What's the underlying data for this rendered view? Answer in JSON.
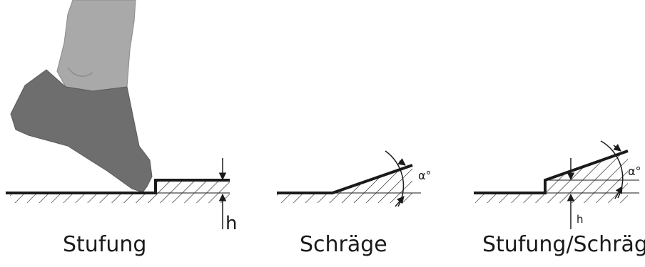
{
  "panels": [
    {
      "caption": "Stufung",
      "dimension_label": "h"
    },
    {
      "caption": "Schräge",
      "angle_label": "α°"
    },
    {
      "caption": "Stufung/Schräge",
      "angle_label": "α°",
      "dimension_label": "h"
    }
  ],
  "colors": {
    "line": "#1a1a1a",
    "shoe": "#6e6e6e",
    "trouser": "#a9a9a9",
    "trouser_outline": "#8a8a8a"
  }
}
